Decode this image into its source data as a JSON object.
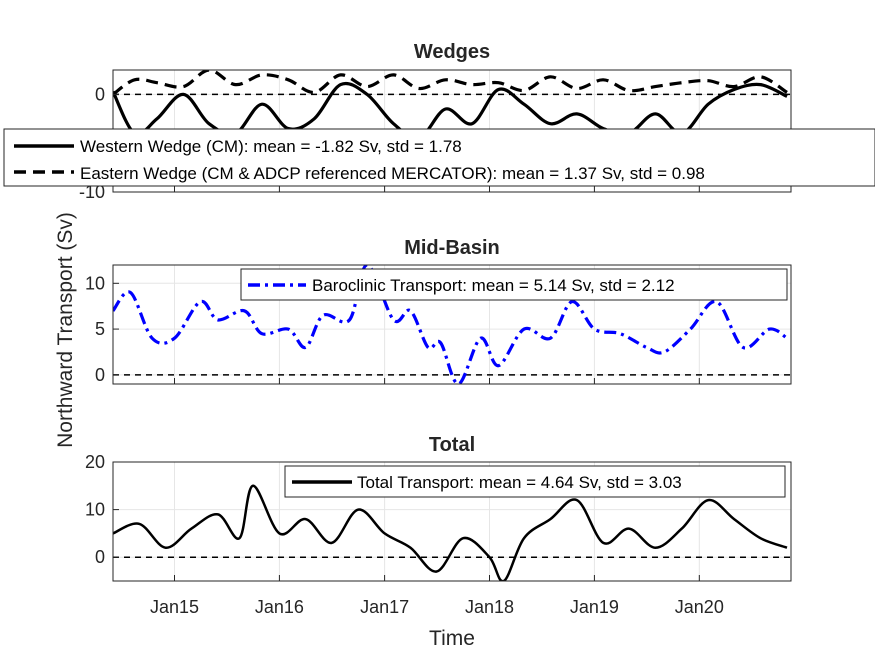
{
  "chart_data": [
    {
      "type": "line",
      "title": "Wedges",
      "ylim": [
        -10,
        2.5
      ],
      "yticks": [
        0,
        -10
      ],
      "yticklabels": [
        "0",
        "-10"
      ],
      "grid": true,
      "legend_placement": "overlaps lower part of axes",
      "zero_line": 0,
      "series": [
        {
          "name": "Western Wedge (CM): mean = -1.82 Sv, std = 1.78",
          "color": "#000000",
          "style": "solid",
          "x": [
            "2014-06-01",
            "2014-08-15",
            "2014-11-01",
            "2015-02-01",
            "2015-05-01",
            "2015-08-01",
            "2015-11-01",
            "2016-02-01",
            "2016-05-01",
            "2016-08-01",
            "2016-11-01",
            "2017-02-01",
            "2017-05-01",
            "2017-08-01",
            "2017-11-01",
            "2018-02-01",
            "2018-05-01",
            "2018-08-01",
            "2018-11-01",
            "2019-02-01",
            "2019-05-01",
            "2019-08-01",
            "2019-11-01",
            "2020-02-01",
            "2020-05-01",
            "2020-08-01",
            "2020-11-01"
          ],
          "values": [
            0.3,
            -4,
            -2.5,
            0,
            -3,
            -4,
            -1,
            -3.5,
            -2.5,
            1,
            0,
            -3,
            -4.5,
            -1.5,
            -3,
            0.5,
            -1,
            -3,
            -2,
            -3.5,
            -4,
            -2,
            -4,
            -1,
            0.5,
            1,
            -0.2
          ]
        },
        {
          "name": "Eastern Wedge (CM & ADCP referenced MERCATOR): mean = 1.37 Sv, std = 0.98",
          "color": "#000000",
          "style": "dashed",
          "x": [
            "2014-06-01",
            "2014-08-15",
            "2014-11-01",
            "2015-02-01",
            "2015-05-01",
            "2015-08-01",
            "2015-11-01",
            "2016-02-01",
            "2016-05-01",
            "2016-08-01",
            "2016-11-01",
            "2017-02-01",
            "2017-05-01",
            "2017-08-01",
            "2017-11-01",
            "2018-02-01",
            "2018-05-01",
            "2018-08-01",
            "2018-11-01",
            "2019-02-01",
            "2019-05-01",
            "2019-08-01",
            "2019-11-01",
            "2020-02-01",
            "2020-05-01",
            "2020-08-01",
            "2020-11-01"
          ],
          "values": [
            0,
            1.5,
            1.2,
            0.8,
            2.5,
            1,
            2,
            1.5,
            0.2,
            2,
            0.8,
            2,
            0.6,
            1.5,
            1,
            1.2,
            0.4,
            1.8,
            0.6,
            1.5,
            0.4,
            0.8,
            1.2,
            1.4,
            0.8,
            1.8,
            0.2
          ]
        }
      ]
    },
    {
      "type": "line",
      "title": "Mid-Basin",
      "ylim": [
        -1,
        12
      ],
      "yticks": [
        0,
        5,
        10
      ],
      "yticklabels": [
        "0",
        "5",
        "10"
      ],
      "grid": true,
      "legend_placement": "top-right",
      "zero_line": 0,
      "series": [
        {
          "name": "Baroclinic Transport: mean = 5.14 Sv, std = 2.12",
          "color": "#0000ff",
          "style": "dash-dot",
          "x": [
            "2014-06-01",
            "2014-08-01",
            "2014-10-15",
            "2015-01-01",
            "2015-04-01",
            "2015-06-01",
            "2015-09-01",
            "2015-11-01",
            "2016-02-01",
            "2016-04-01",
            "2016-06-01",
            "2016-09-01",
            "2016-11-01",
            "2017-02-01",
            "2017-04-01",
            "2017-06-01",
            "2017-07-15",
            "2017-09-15",
            "2017-12-01",
            "2018-02-01",
            "2018-05-01",
            "2018-08-01",
            "2018-10-15",
            "2019-01-01",
            "2019-04-01",
            "2019-07-01",
            "2019-09-01",
            "2019-12-01",
            "2020-03-01",
            "2020-06-01",
            "2020-09-01",
            "2020-11-01"
          ],
          "values": [
            7,
            9,
            4,
            4,
            8,
            6,
            7,
            4.5,
            5,
            3,
            6.5,
            6,
            12,
            6,
            7,
            3,
            3.5,
            -1,
            4,
            1,
            5,
            4,
            8,
            5,
            4.5,
            3,
            2.5,
            5,
            8,
            3,
            5,
            4
          ]
        }
      ]
    },
    {
      "type": "line",
      "title": "Total",
      "ylim": [
        -5,
        20
      ],
      "yticks": [
        0,
        10,
        20
      ],
      "yticklabels": [
        "0",
        "10",
        "20"
      ],
      "grid": true,
      "legend_placement": "top-right",
      "zero_line": 0,
      "xticklabels": [
        "Jan15",
        "Jan16",
        "Jan17",
        "Jan18",
        "Jan19",
        "Jan20"
      ],
      "series": [
        {
          "name": "Total Transport: mean = 4.64 Sv, std = 3.03",
          "color": "#000000",
          "style": "solid",
          "x": [
            "2014-06-01",
            "2014-09-01",
            "2014-12-01",
            "2015-03-01",
            "2015-06-01",
            "2015-08-15",
            "2015-10-01",
            "2016-01-01",
            "2016-04-01",
            "2016-07-01",
            "2016-10-01",
            "2017-01-01",
            "2017-04-01",
            "2017-07-01",
            "2017-10-01",
            "2018-01-01",
            "2018-02-20",
            "2018-05-01",
            "2018-08-01",
            "2018-11-01",
            "2019-02-01",
            "2019-05-01",
            "2019-08-01",
            "2019-11-01",
            "2020-02-01",
            "2020-05-01",
            "2020-08-01",
            "2020-11-01"
          ],
          "values": [
            5,
            7,
            2,
            6,
            9,
            4,
            15,
            5,
            8,
            3,
            10,
            5,
            2,
            -3,
            4,
            0,
            -5,
            4,
            8,
            12,
            3,
            6,
            2,
            6,
            12,
            8,
            4,
            2
          ]
        }
      ]
    }
  ],
  "ylabel": "Northward Transport (Sv)",
  "xlabel": "Time"
}
